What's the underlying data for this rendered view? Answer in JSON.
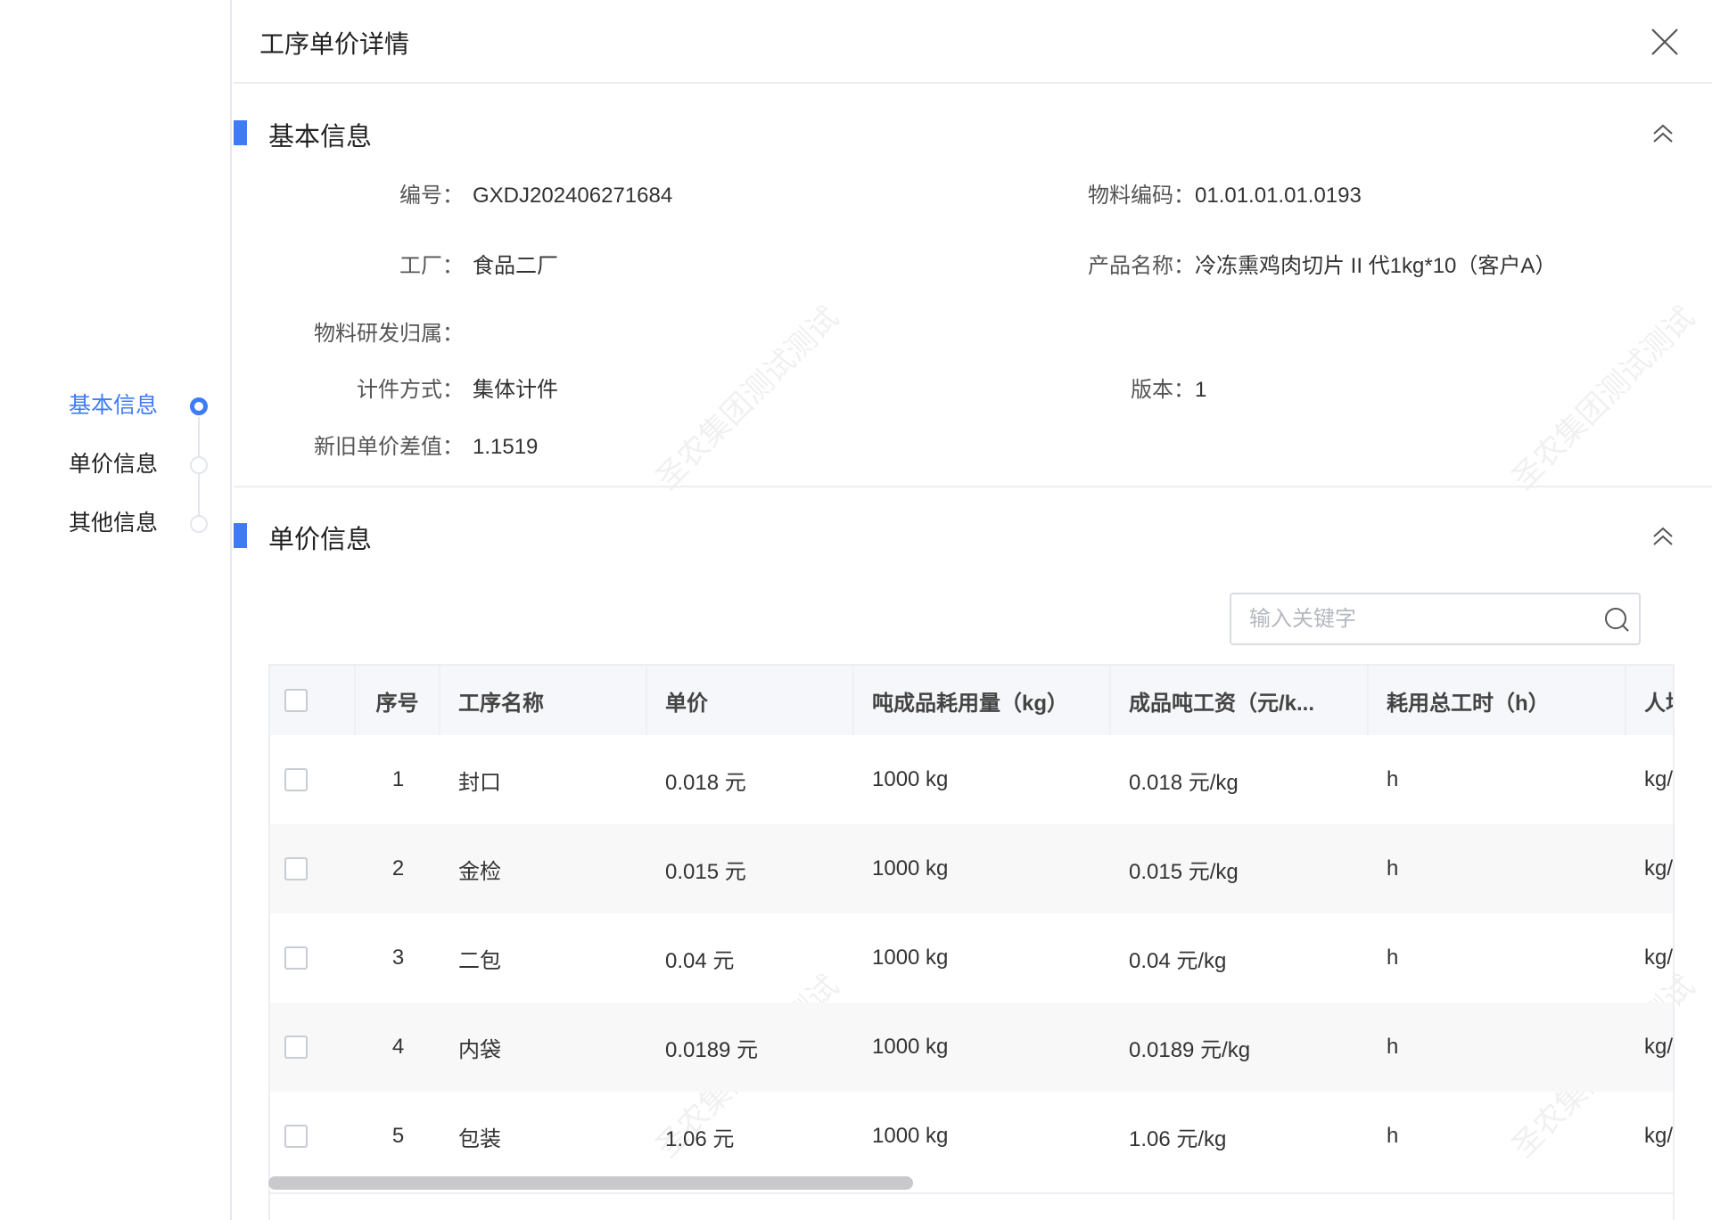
{
  "nav": {
    "items": [
      {
        "label": "基本信息",
        "active": true
      },
      {
        "label": "单价信息",
        "active": false
      },
      {
        "label": "其他信息",
        "active": false
      }
    ]
  },
  "header": {
    "title": "工序单价详情",
    "close_icon": "close-icon"
  },
  "basic": {
    "title": "基本信息",
    "fields": {
      "code": {
        "label": "编号：",
        "value": "GXDJ202406271684"
      },
      "material_code": {
        "label": "物料编码：",
        "value": "01.01.01.01.0193"
      },
      "factory": {
        "label": "工厂：",
        "value": "食品二厂"
      },
      "product_name": {
        "label": "产品名称：",
        "value": "冷冻熏鸡肉切片 II 代1kg*10（客户A）"
      },
      "rd_owner": {
        "label": "物料研发归属：",
        "value": ""
      },
      "piece_method": {
        "label": "计件方式：",
        "value": "集体计件"
      },
      "version": {
        "label": "版本：",
        "value": "1"
      },
      "price_diff": {
        "label": "新旧单价差值：",
        "value": "1.1519"
      }
    }
  },
  "price": {
    "title": "单价信息",
    "search_placeholder": "输入关键字",
    "columns": [
      "序号",
      "工序名称",
      "单价",
      "吨成品耗用量（kg）",
      "成品吨工资（元/k...",
      "耗用总工时（h）",
      "人均"
    ],
    "rows": [
      [
        "1",
        "封口",
        "0.018 元",
        "1000 kg",
        "0.018 元/kg",
        "h",
        "kg/"
      ],
      [
        "2",
        "金检",
        "0.015 元",
        "1000 kg",
        "0.015 元/kg",
        "h",
        "kg/"
      ],
      [
        "3",
        "二包",
        "0.04 元",
        "1000 kg",
        "0.04 元/kg",
        "h",
        "kg/"
      ],
      [
        "4",
        "内袋",
        "0.0189 元",
        "1000 kg",
        "0.0189 元/kg",
        "h",
        "kg/"
      ],
      [
        "5",
        "包装",
        "1.06 元",
        "1000 kg",
        "1.06 元/kg",
        "h",
        "kg/"
      ]
    ]
  },
  "watermark": "圣农集团测试测试",
  "colors": {
    "accent": "#3f7bf5"
  }
}
